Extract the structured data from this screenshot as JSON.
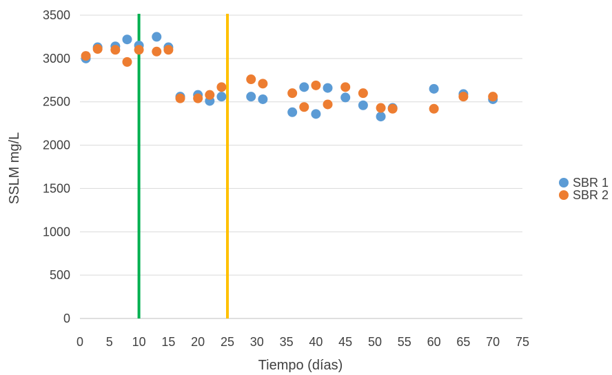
{
  "chart_data": {
    "type": "scatter",
    "title": "",
    "xlabel": "Tiempo (días)",
    "ylabel": "SSLM mg/L",
    "xlim": [
      0,
      75
    ],
    "ylim": [
      0,
      3500
    ],
    "xticks": [
      0,
      5,
      10,
      15,
      20,
      25,
      30,
      35,
      40,
      45,
      50,
      55,
      60,
      65,
      70,
      75
    ],
    "yticks": [
      0,
      500,
      1000,
      1500,
      2000,
      2500,
      3000,
      3500
    ],
    "grid": "horizontal",
    "legend": "right",
    "vertical_lines": [
      {
        "x": 10,
        "color": "#00b050"
      },
      {
        "x": 25,
        "color": "#ffc000"
      }
    ],
    "series": [
      {
        "name": "SBR 1",
        "color": "#5b9bd5",
        "points": [
          [
            1,
            3000
          ],
          [
            3,
            3130
          ],
          [
            6,
            3140
          ],
          [
            8,
            3220
          ],
          [
            10,
            3150
          ],
          [
            13,
            3250
          ],
          [
            15,
            3130
          ],
          [
            17,
            2560
          ],
          [
            20,
            2580
          ],
          [
            22,
            2510
          ],
          [
            24,
            2560
          ],
          [
            29,
            2560
          ],
          [
            31,
            2530
          ],
          [
            36,
            2380
          ],
          [
            38,
            2670
          ],
          [
            40,
            2360
          ],
          [
            42,
            2660
          ],
          [
            45,
            2550
          ],
          [
            48,
            2460
          ],
          [
            51,
            2330
          ],
          [
            53,
            2430
          ],
          [
            60,
            2650
          ],
          [
            65,
            2590
          ],
          [
            70,
            2530
          ]
        ]
      },
      {
        "name": "SBR 2",
        "color": "#ed7d31",
        "points": [
          [
            1,
            3030
          ],
          [
            3,
            3110
          ],
          [
            6,
            3100
          ],
          [
            8,
            2960
          ],
          [
            10,
            3100
          ],
          [
            13,
            3080
          ],
          [
            15,
            3100
          ],
          [
            17,
            2540
          ],
          [
            20,
            2540
          ],
          [
            22,
            2580
          ],
          [
            24,
            2670
          ],
          [
            29,
            2760
          ],
          [
            31,
            2710
          ],
          [
            36,
            2600
          ],
          [
            38,
            2440
          ],
          [
            40,
            2690
          ],
          [
            42,
            2470
          ],
          [
            45,
            2670
          ],
          [
            48,
            2600
          ],
          [
            51,
            2430
          ],
          [
            53,
            2420
          ],
          [
            60,
            2420
          ],
          [
            65,
            2560
          ],
          [
            70,
            2560
          ]
        ]
      }
    ]
  }
}
